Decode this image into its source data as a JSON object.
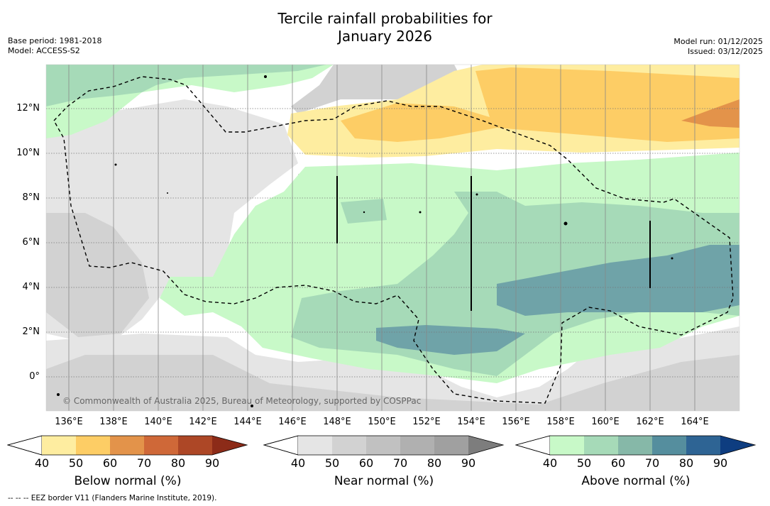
{
  "title_line1": "Tercile rainfall probabilities for",
  "title_line2": "January 2026",
  "base_period": "Base period: 1981-2018",
  "model": "Model: ACCESS-S2",
  "model_run": "Model run: 01/12/2025",
  "issued": "Issued: 03/12/2025",
  "lat_labels": [
    "12°N",
    "10°N",
    "8°N",
    "6°N",
    "4°N",
    "2°N",
    "0°"
  ],
  "lon_labels": [
    "136°E",
    "138°E",
    "140°E",
    "142°E",
    "144°E",
    "146°E",
    "148°E",
    "150°E",
    "152°E",
    "154°E",
    "156°E",
    "158°E",
    "160°E",
    "162°E",
    "164°E"
  ],
  "copyright": "© Commonwealth of Australia 2025, Bureau of Meteorology, supported by COSPPac",
  "colorbars": [
    {
      "title": "Below normal (%)",
      "colors": [
        "#ffffff",
        "#feeda0",
        "#fdcd65",
        "#e3934a",
        "#cf6838",
        "#ad4726",
        "#8c2b18"
      ]
    },
    {
      "title": "Near normal (%)",
      "colors": [
        "#ffffff",
        "#e5e5e5",
        "#d2d2d2",
        "#c1c1c1",
        "#b0b0b0",
        "#a0a0a0",
        "#7d7d7d"
      ]
    },
    {
      "title": "Above normal (%)",
      "colors": [
        "#ffffff",
        "#c8f9c8",
        "#a6dab8",
        "#86b8a8",
        "#558e9e",
        "#2e6494",
        "#0e3d80"
      ]
    }
  ],
  "tick_values": [
    "40",
    "50",
    "60",
    "70",
    "80",
    "90"
  ],
  "footer": "--  --  -- EEZ border V11 (Flanders Marine Institute, 2019)."
}
